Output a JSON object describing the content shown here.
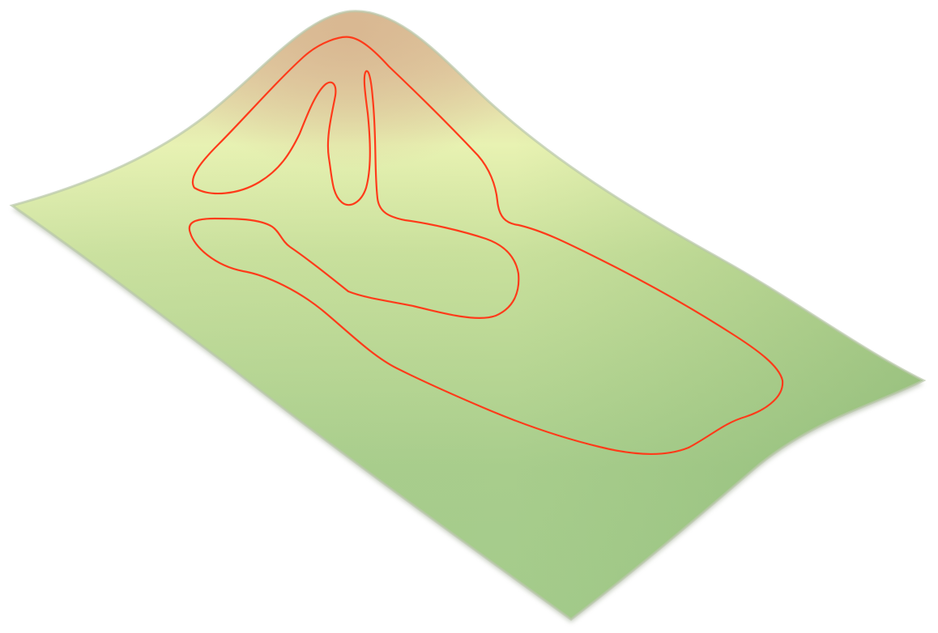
{
  "figure": {
    "kind": "3d-surface-with-contour-curves",
    "colors": {
      "background": "#ffffff",
      "surface_low": "#93c07e",
      "surface_mid": "#c8e09e",
      "surface_band": "#e6f1b0",
      "surface_peak": "#ddbf9a",
      "edge_shadow": "#9aa68e",
      "curve": "#ff3b1a"
    },
    "curve_count": 3
  }
}
